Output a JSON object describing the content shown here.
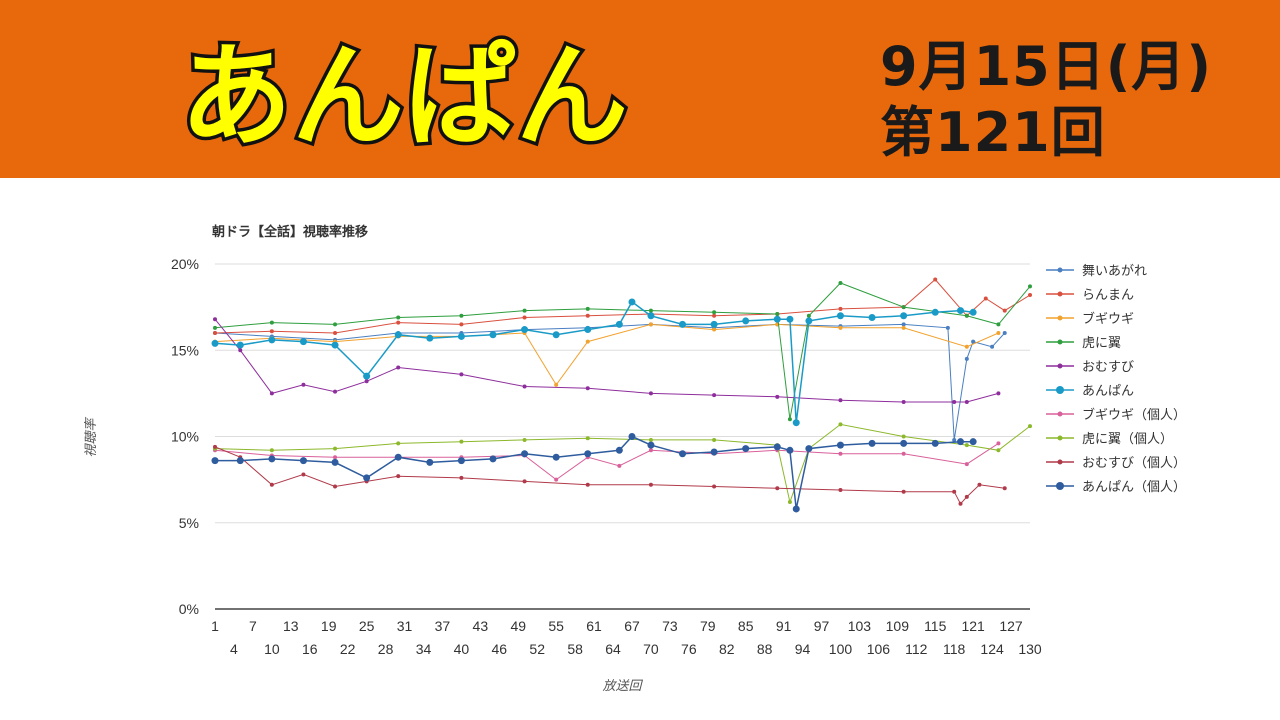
{
  "header": {
    "title": "あんぱん",
    "date": "9月15日(月)",
    "episode": "第121回",
    "bg_color": "#e8680c",
    "title_fill": "#ffff00"
  },
  "chart_data": {
    "type": "line",
    "title": "朝ドラ【全話】視聴率推移",
    "xlabel": "放送回",
    "ylabel": "視聴率",
    "ylim": [
      0,
      20
    ],
    "xlim": [
      1,
      130
    ],
    "yticks": [
      "0%",
      "5%",
      "10%",
      "15%",
      "20%"
    ],
    "xticks_top": [
      1,
      7,
      13,
      19,
      25,
      31,
      37,
      43,
      49,
      55,
      61,
      67,
      73,
      79,
      85,
      91,
      97,
      103,
      109,
      115,
      121,
      127
    ],
    "xticks_bottom": [
      4,
      10,
      16,
      22,
      28,
      34,
      40,
      46,
      52,
      58,
      64,
      70,
      76,
      82,
      88,
      94,
      100,
      106,
      112,
      118,
      124,
      130
    ],
    "grid": true,
    "legend_position": "right",
    "series": [
      {
        "name": "舞いあがれ",
        "color": "#4a7fc1",
        "markerSize": 2,
        "lineWidth": 1,
        "points": [
          [
            1,
            16.0
          ],
          [
            10,
            15.8
          ],
          [
            20,
            15.6
          ],
          [
            30,
            16.0
          ],
          [
            40,
            16.0
          ],
          [
            50,
            16.2
          ],
          [
            60,
            16.3
          ],
          [
            70,
            16.5
          ],
          [
            80,
            16.3
          ],
          [
            90,
            16.5
          ],
          [
            100,
            16.4
          ],
          [
            110,
            16.5
          ],
          [
            117,
            16.3
          ],
          [
            118,
            9.8
          ],
          [
            120,
            14.5
          ],
          [
            121,
            15.5
          ],
          [
            124,
            15.2
          ],
          [
            126,
            16.0
          ]
        ]
      },
      {
        "name": "らんまん",
        "color": "#d9503f",
        "markerSize": 2,
        "lineWidth": 1,
        "points": [
          [
            1,
            16.0
          ],
          [
            10,
            16.1
          ],
          [
            20,
            16.0
          ],
          [
            30,
            16.6
          ],
          [
            40,
            16.5
          ],
          [
            50,
            16.9
          ],
          [
            60,
            17.0
          ],
          [
            70,
            17.1
          ],
          [
            80,
            17.0
          ],
          [
            90,
            17.1
          ],
          [
            100,
            17.4
          ],
          [
            110,
            17.5
          ],
          [
            115,
            19.1
          ],
          [
            120,
            17.0
          ],
          [
            123,
            18.0
          ],
          [
            126,
            17.3
          ],
          [
            130,
            18.2
          ]
        ]
      },
      {
        "name": "ブギウギ",
        "color": "#f2a22e",
        "markerSize": 2,
        "lineWidth": 1,
        "points": [
          [
            1,
            15.5
          ],
          [
            10,
            15.7
          ],
          [
            20,
            15.5
          ],
          [
            30,
            15.8
          ],
          [
            40,
            15.8
          ],
          [
            50,
            16.0
          ],
          [
            55,
            13.0
          ],
          [
            60,
            15.5
          ],
          [
            70,
            16.5
          ],
          [
            80,
            16.2
          ],
          [
            90,
            16.5
          ],
          [
            100,
            16.3
          ],
          [
            110,
            16.3
          ],
          [
            120,
            15.2
          ],
          [
            125,
            16.0
          ]
        ]
      },
      {
        "name": "虎に翼",
        "color": "#2e9e3e",
        "markerSize": 2,
        "lineWidth": 1,
        "points": [
          [
            1,
            16.3
          ],
          [
            10,
            16.6
          ],
          [
            20,
            16.5
          ],
          [
            30,
            16.9
          ],
          [
            40,
            17.0
          ],
          [
            50,
            17.3
          ],
          [
            60,
            17.4
          ],
          [
            70,
            17.3
          ],
          [
            80,
            17.2
          ],
          [
            90,
            17.1
          ],
          [
            92,
            11.0
          ],
          [
            95,
            17.0
          ],
          [
            100,
            18.9
          ],
          [
            110,
            17.5
          ],
          [
            120,
            17.0
          ],
          [
            125,
            16.5
          ],
          [
            130,
            18.7
          ]
        ]
      },
      {
        "name": "おむすび",
        "color": "#8e2e9c",
        "markerSize": 2,
        "lineWidth": 1,
        "points": [
          [
            1,
            16.8
          ],
          [
            5,
            15.0
          ],
          [
            10,
            12.5
          ],
          [
            15,
            13.0
          ],
          [
            20,
            12.6
          ],
          [
            25,
            13.2
          ],
          [
            30,
            14.0
          ],
          [
            40,
            13.6
          ],
          [
            50,
            12.9
          ],
          [
            60,
            12.8
          ],
          [
            70,
            12.5
          ],
          [
            80,
            12.4
          ],
          [
            90,
            12.3
          ],
          [
            100,
            12.1
          ],
          [
            110,
            12.0
          ],
          [
            118,
            12.0
          ],
          [
            120,
            12.0
          ],
          [
            125,
            12.5
          ]
        ]
      },
      {
        "name": "あんぱん",
        "color": "#1a9bc7",
        "markerSize": 3.5,
        "lineWidth": 1.5,
        "points": [
          [
            1,
            15.4
          ],
          [
            5,
            15.3
          ],
          [
            10,
            15.6
          ],
          [
            15,
            15.5
          ],
          [
            20,
            15.3
          ],
          [
            25,
            13.5
          ],
          [
            30,
            15.9
          ],
          [
            35,
            15.7
          ],
          [
            40,
            15.8
          ],
          [
            45,
            15.9
          ],
          [
            50,
            16.2
          ],
          [
            55,
            15.9
          ],
          [
            60,
            16.2
          ],
          [
            65,
            16.5
          ],
          [
            67,
            17.8
          ],
          [
            70,
            17.0
          ],
          [
            75,
            16.5
          ],
          [
            80,
            16.5
          ],
          [
            85,
            16.7
          ],
          [
            90,
            16.8
          ],
          [
            92,
            16.8
          ],
          [
            93,
            10.8
          ],
          [
            95,
            16.7
          ],
          [
            100,
            17.0
          ],
          [
            105,
            16.9
          ],
          [
            110,
            17.0
          ],
          [
            115,
            17.2
          ],
          [
            119,
            17.3
          ],
          [
            121,
            17.2
          ]
        ]
      },
      {
        "name": "ブギウギ（個人）",
        "color": "#d9609a",
        "markerSize": 2,
        "lineWidth": 1,
        "points": [
          [
            1,
            9.2
          ],
          [
            10,
            8.9
          ],
          [
            20,
            8.8
          ],
          [
            30,
            8.8
          ],
          [
            40,
            8.8
          ],
          [
            50,
            8.9
          ],
          [
            55,
            7.5
          ],
          [
            60,
            8.8
          ],
          [
            65,
            8.3
          ],
          [
            70,
            9.2
          ],
          [
            80,
            9.0
          ],
          [
            90,
            9.2
          ],
          [
            100,
            9.0
          ],
          [
            110,
            9.0
          ],
          [
            120,
            8.4
          ],
          [
            125,
            9.6
          ]
        ]
      },
      {
        "name": "虎に翼（個人）",
        "color": "#8cb82b",
        "markerSize": 2,
        "lineWidth": 1,
        "points": [
          [
            1,
            9.3
          ],
          [
            10,
            9.2
          ],
          [
            20,
            9.3
          ],
          [
            30,
            9.6
          ],
          [
            40,
            9.7
          ],
          [
            50,
            9.8
          ],
          [
            60,
            9.9
          ],
          [
            70,
            9.8
          ],
          [
            80,
            9.8
          ],
          [
            90,
            9.5
          ],
          [
            92,
            6.2
          ],
          [
            95,
            9.3
          ],
          [
            100,
            10.7
          ],
          [
            110,
            10.0
          ],
          [
            120,
            9.5
          ],
          [
            125,
            9.2
          ],
          [
            130,
            10.6
          ]
        ]
      },
      {
        "name": "おむすび（個人）",
        "color": "#b03a4a",
        "markerSize": 2,
        "lineWidth": 1,
        "points": [
          [
            1,
            9.4
          ],
          [
            5,
            8.8
          ],
          [
            10,
            7.2
          ],
          [
            15,
            7.8
          ],
          [
            20,
            7.1
          ],
          [
            25,
            7.4
          ],
          [
            30,
            7.7
          ],
          [
            40,
            7.6
          ],
          [
            50,
            7.4
          ],
          [
            60,
            7.2
          ],
          [
            70,
            7.2
          ],
          [
            80,
            7.1
          ],
          [
            90,
            7.0
          ],
          [
            100,
            6.9
          ],
          [
            110,
            6.8
          ],
          [
            118,
            6.8
          ],
          [
            119,
            6.1
          ],
          [
            120,
            6.5
          ],
          [
            122,
            7.2
          ],
          [
            126,
            7.0
          ]
        ]
      },
      {
        "name": "あんぱん（個人）",
        "color": "#2e5c9e",
        "markerSize": 3.5,
        "lineWidth": 1.5,
        "points": [
          [
            1,
            8.6
          ],
          [
            5,
            8.6
          ],
          [
            10,
            8.7
          ],
          [
            15,
            8.6
          ],
          [
            20,
            8.5
          ],
          [
            25,
            7.6
          ],
          [
            30,
            8.8
          ],
          [
            35,
            8.5
          ],
          [
            40,
            8.6
          ],
          [
            45,
            8.7
          ],
          [
            50,
            9.0
          ],
          [
            55,
            8.8
          ],
          [
            60,
            9.0
          ],
          [
            65,
            9.2
          ],
          [
            67,
            10.0
          ],
          [
            70,
            9.5
          ],
          [
            75,
            9.0
          ],
          [
            80,
            9.1
          ],
          [
            85,
            9.3
          ],
          [
            90,
            9.4
          ],
          [
            92,
            9.2
          ],
          [
            93,
            5.8
          ],
          [
            95,
            9.3
          ],
          [
            100,
            9.5
          ],
          [
            105,
            9.6
          ],
          [
            110,
            9.6
          ],
          [
            115,
            9.6
          ],
          [
            119,
            9.7
          ],
          [
            121,
            9.7
          ]
        ]
      }
    ]
  }
}
